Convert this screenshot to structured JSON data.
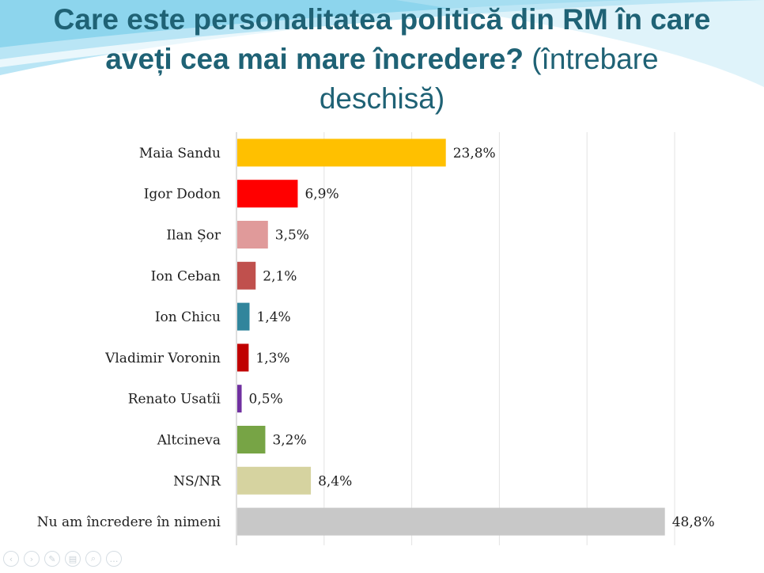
{
  "title": {
    "bold_line1": "Care este personalitatea politică din RM în care",
    "bold_line2": "aveți cea mai mare încredere?",
    "normal_line2": " (întrebare",
    "normal_line3": "deschisă)"
  },
  "chart_data": {
    "type": "bar",
    "orientation": "horizontal",
    "categories": [
      "Maia Sandu",
      "Igor Dodon",
      "Ilan Șor",
      "Ion Ceban",
      "Ion Chicu",
      "Vladimir Voronin",
      "Renato Usatîi",
      "Altcineva",
      "NS/NR",
      "Nu am încredere în nimeni"
    ],
    "values": [
      23.8,
      6.9,
      3.5,
      2.1,
      1.4,
      1.3,
      0.5,
      3.2,
      8.4,
      48.8
    ],
    "value_labels": [
      "23,8%",
      "6,9%",
      "3,5%",
      "2,1%",
      "1,4%",
      "1,3%",
      "0,5%",
      "3,2%",
      "8,4%",
      "48,8%"
    ],
    "colors": [
      "#ffc000",
      "#ff0000",
      "#e09a9a",
      "#c0504d",
      "#31859c",
      "#c00000",
      "#7030a0",
      "#77a445",
      "#d6d3a0",
      "#c8c8c8"
    ],
    "xlim": [
      0,
      50
    ],
    "grid": true,
    "legend": "none"
  },
  "toolbar": {
    "icons": [
      "prev-icon",
      "next-icon",
      "pen-icon",
      "slides-icon",
      "zoom-icon",
      "more-icon"
    ]
  }
}
